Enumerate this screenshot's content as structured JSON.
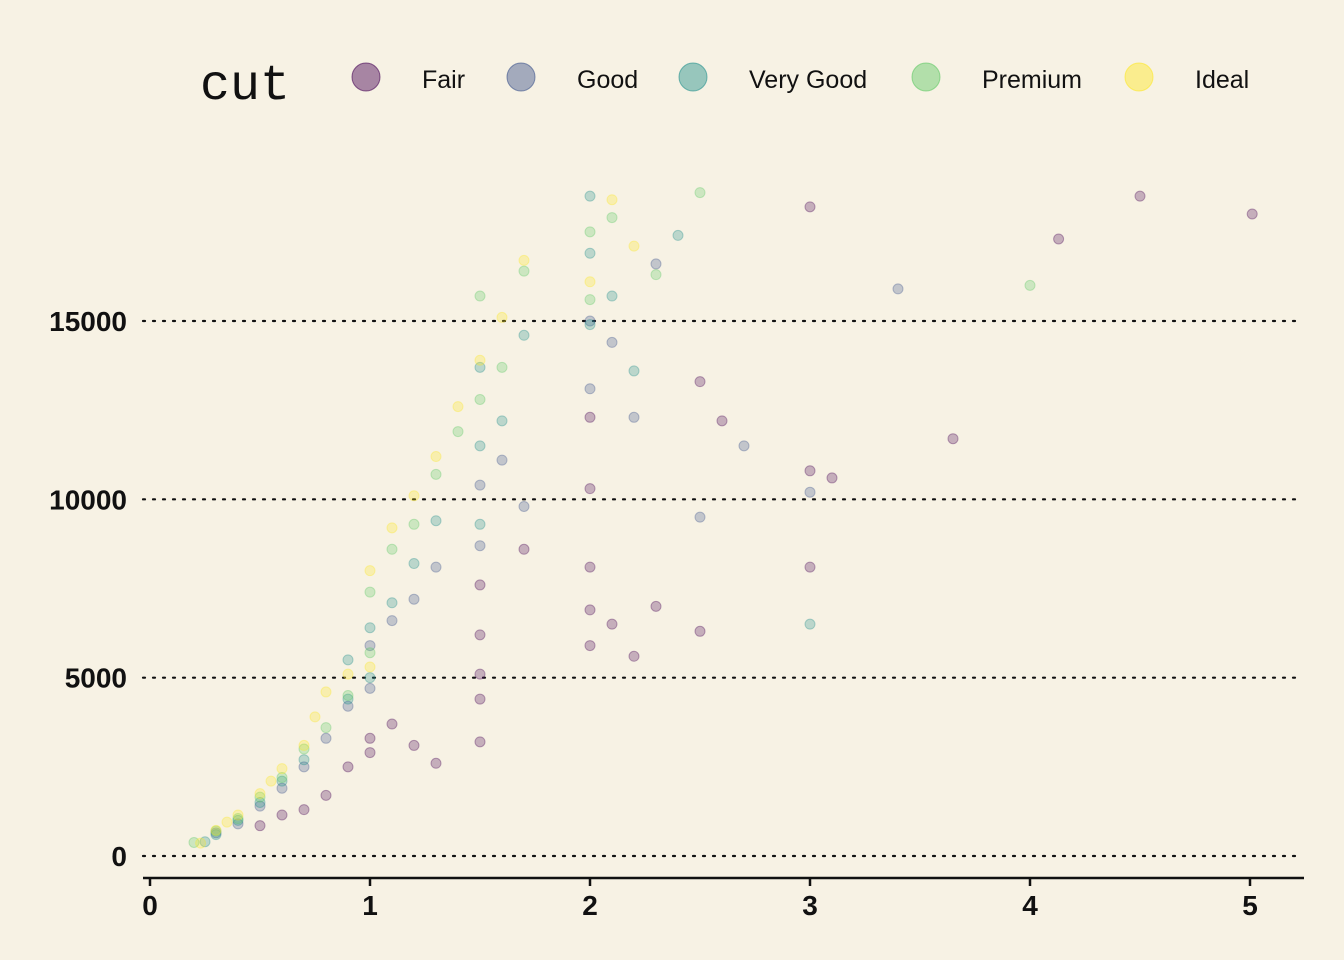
{
  "chart_data": {
    "type": "scatter",
    "title": "",
    "xlabel": "",
    "ylabel": "",
    "xlim": [
      0,
      5.25
    ],
    "ylim": [
      0,
      18900
    ],
    "x_ticks": [
      "0",
      "1",
      "2",
      "3",
      "4",
      "5"
    ],
    "y_ticks": [
      "0",
      "5000",
      "10000",
      "15000"
    ],
    "grid": "horizontal dotted lines at y ticks",
    "legend": {
      "title": "cut",
      "placement": "top",
      "entries": [
        {
          "label": "Fair",
          "color": "#440154"
        },
        {
          "label": "Good",
          "color": "#3b528b"
        },
        {
          "label": "Very Good",
          "color": "#21908c"
        },
        {
          "label": "Premium",
          "color": "#5dc863"
        },
        {
          "label": "Ideal",
          "color": "#fde725"
        }
      ]
    },
    "series": [
      {
        "name": "Fair",
        "color": "#440154",
        "points": [
          [
            0.5,
            850
          ],
          [
            0.6,
            1150
          ],
          [
            0.7,
            1300
          ],
          [
            0.8,
            1700
          ],
          [
            0.9,
            2500
          ],
          [
            1.0,
            2900
          ],
          [
            1.0,
            3300
          ],
          [
            1.1,
            3700
          ],
          [
            1.2,
            3100
          ],
          [
            1.3,
            2600
          ],
          [
            1.5,
            3200
          ],
          [
            1.5,
            4400
          ],
          [
            1.5,
            5100
          ],
          [
            1.5,
            6200
          ],
          [
            1.5,
            7600
          ],
          [
            1.7,
            8600
          ],
          [
            2.0,
            5900
          ],
          [
            2.0,
            6900
          ],
          [
            2.0,
            8100
          ],
          [
            2.0,
            10300
          ],
          [
            2.0,
            12300
          ],
          [
            2.1,
            6500
          ],
          [
            2.2,
            5600
          ],
          [
            2.3,
            7000
          ],
          [
            2.5,
            13300
          ],
          [
            2.5,
            6300
          ],
          [
            2.6,
            12200
          ],
          [
            3.0,
            18200
          ],
          [
            3.0,
            10800
          ],
          [
            3.0,
            8100
          ],
          [
            3.1,
            10600
          ],
          [
            3.65,
            11700
          ],
          [
            4.13,
            17300
          ],
          [
            4.5,
            18500
          ],
          [
            5.01,
            18000
          ]
        ]
      },
      {
        "name": "Good",
        "color": "#3b528b",
        "points": [
          [
            0.3,
            650
          ],
          [
            0.4,
            900
          ],
          [
            0.5,
            1400
          ],
          [
            0.6,
            1900
          ],
          [
            0.7,
            2500
          ],
          [
            0.8,
            3300
          ],
          [
            0.9,
            4200
          ],
          [
            1.0,
            4700
          ],
          [
            1.0,
            5900
          ],
          [
            1.1,
            6600
          ],
          [
            1.2,
            7200
          ],
          [
            1.3,
            8100
          ],
          [
            1.5,
            8700
          ],
          [
            1.5,
            10400
          ],
          [
            1.6,
            11100
          ],
          [
            1.7,
            9800
          ],
          [
            2.0,
            13100
          ],
          [
            2.0,
            15000
          ],
          [
            2.1,
            14400
          ],
          [
            2.2,
            12300
          ],
          [
            2.3,
            16600
          ],
          [
            2.5,
            9500
          ],
          [
            2.7,
            11500
          ],
          [
            3.0,
            10200
          ],
          [
            3.4,
            15900
          ]
        ]
      },
      {
        "name": "Very Good",
        "color": "#21908c",
        "points": [
          [
            0.25,
            400
          ],
          [
            0.3,
            600
          ],
          [
            0.4,
            1000
          ],
          [
            0.5,
            1500
          ],
          [
            0.6,
            2100
          ],
          [
            0.7,
            2700
          ],
          [
            0.9,
            4400
          ],
          [
            0.9,
            5500
          ],
          [
            1.0,
            5000
          ],
          [
            1.0,
            6400
          ],
          [
            1.1,
            7100
          ],
          [
            1.2,
            8200
          ],
          [
            1.3,
            9400
          ],
          [
            1.5,
            9300
          ],
          [
            1.5,
            11500
          ],
          [
            1.5,
            13700
          ],
          [
            1.6,
            12200
          ],
          [
            1.7,
            14600
          ],
          [
            2.0,
            14900
          ],
          [
            2.0,
            16900
          ],
          [
            2.0,
            18500
          ],
          [
            2.1,
            15700
          ],
          [
            2.2,
            13600
          ],
          [
            2.4,
            17400
          ],
          [
            3.0,
            6500
          ]
        ]
      },
      {
        "name": "Premium",
        "color": "#5dc863",
        "points": [
          [
            0.2,
            380
          ],
          [
            0.3,
            700
          ],
          [
            0.4,
            1050
          ],
          [
            0.5,
            1650
          ],
          [
            0.6,
            2200
          ],
          [
            0.7,
            3000
          ],
          [
            0.8,
            3600
          ],
          [
            0.9,
            4500
          ],
          [
            1.0,
            5700
          ],
          [
            1.0,
            7400
          ],
          [
            1.1,
            8600
          ],
          [
            1.2,
            9300
          ],
          [
            1.3,
            10700
          ],
          [
            1.4,
            11900
          ],
          [
            1.5,
            12800
          ],
          [
            1.5,
            15700
          ],
          [
            1.6,
            13700
          ],
          [
            1.7,
            16400
          ],
          [
            2.0,
            17500
          ],
          [
            2.0,
            15600
          ],
          [
            2.1,
            17900
          ],
          [
            2.3,
            16300
          ],
          [
            2.5,
            18600
          ],
          [
            4.0,
            16000
          ]
        ]
      },
      {
        "name": "Ideal",
        "color": "#fde725",
        "points": [
          [
            0.23,
            360
          ],
          [
            0.3,
            720
          ],
          [
            0.35,
            950
          ],
          [
            0.4,
            1150
          ],
          [
            0.5,
            1750
          ],
          [
            0.55,
            2100
          ],
          [
            0.6,
            2450
          ],
          [
            0.7,
            3100
          ],
          [
            0.75,
            3900
          ],
          [
            0.8,
            4600
          ],
          [
            0.9,
            5100
          ],
          [
            1.0,
            5300
          ],
          [
            1.0,
            8000
          ],
          [
            1.1,
            9200
          ],
          [
            1.2,
            10100
          ],
          [
            1.3,
            11200
          ],
          [
            1.4,
            12600
          ],
          [
            1.5,
            13900
          ],
          [
            1.6,
            15100
          ],
          [
            1.7,
            16700
          ],
          [
            2.0,
            16100
          ],
          [
            2.1,
            18400
          ],
          [
            2.2,
            17100
          ]
        ]
      }
    ]
  }
}
